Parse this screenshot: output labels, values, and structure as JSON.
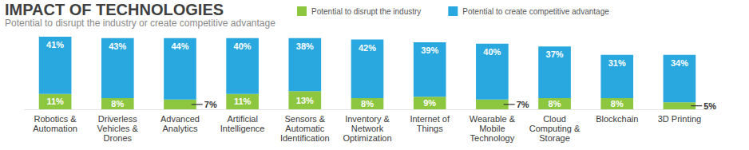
{
  "chart_data": {
    "type": "bar",
    "title": "IMPACT OF TECHNOLOGIES",
    "subtitle": "Potential to disrupt the industry or create competitive advantage",
    "categories": [
      "Robotics & Automation",
      "Driverless Vehicles & Drones",
      "Advanced Analytics",
      "Artificial Intelligence",
      "Sensors & Automatic Identification",
      "Inventory & Network Optimization",
      "Internet of Things",
      "Wearable & Mobile Technology",
      "Cloud Computing & Storage",
      "Blockchain",
      "3D Printing"
    ],
    "series": [
      {
        "name": "Potential to disrupt the industry",
        "color": "#8dc63f",
        "values": [
          11,
          8,
          7,
          11,
          13,
          8,
          9,
          7,
          8,
          8,
          5
        ],
        "value_labels": [
          "11%",
          "8%",
          "7%",
          "11%",
          "13%",
          "8%",
          "9%",
          "7%",
          "8%",
          "8%",
          "5%"
        ]
      },
      {
        "name": "Potential to create competitive advantage",
        "color": "#29a8e0",
        "values": [
          41,
          43,
          44,
          40,
          38,
          42,
          39,
          40,
          37,
          31,
          34
        ],
        "value_labels": [
          "41%",
          "43%",
          "44%",
          "40%",
          "38%",
          "42%",
          "39%",
          "40%",
          "37%",
          "31%",
          "34%"
        ]
      }
    ],
    "stacked": true,
    "data_labels": true,
    "legend": "top",
    "tick_labels": "x"
  }
}
